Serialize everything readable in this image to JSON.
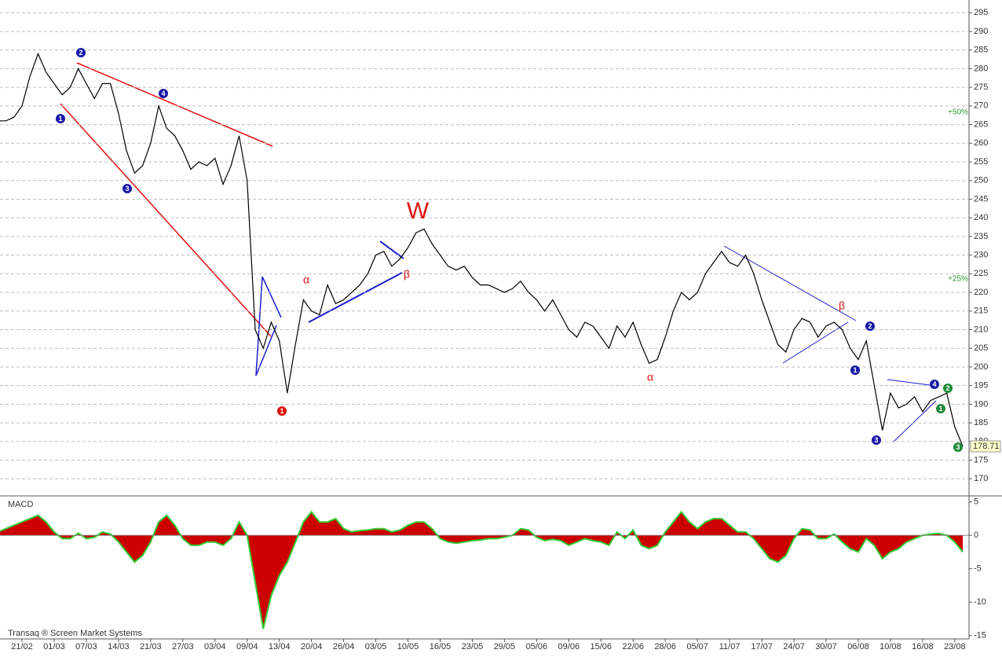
{
  "chart_data": [
    {
      "type": "line",
      "color": "#000000",
      "grid": true,
      "values": [
        266,
        266,
        267,
        270,
        278,
        284,
        279,
        276,
        273,
        275,
        280,
        276,
        272,
        276,
        276,
        268,
        258,
        252,
        254,
        260,
        270,
        264,
        262,
        258,
        253,
        255,
        254,
        256,
        249,
        254,
        262,
        250,
        210,
        205,
        212,
        207,
        193,
        206,
        218,
        215,
        214,
        222,
        217,
        218,
        220,
        222,
        225,
        230,
        231,
        227,
        229,
        232,
        236,
        237,
        233,
        230,
        227,
        226,
        227,
        224,
        222,
        222,
        221,
        220,
        221,
        223,
        220,
        218,
        215,
        218,
        214,
        210,
        208,
        212,
        211,
        208,
        205,
        211,
        208,
        212,
        206,
        201,
        202,
        208,
        215,
        220,
        218,
        220,
        225,
        228,
        231,
        228,
        227,
        230,
        225,
        218,
        212,
        206,
        204,
        210,
        213,
        212,
        208,
        211,
        212,
        210,
        205,
        202,
        207,
        195,
        183,
        193,
        189,
        190,
        192,
        188,
        191,
        192,
        193,
        184,
        178.71
      ],
      "ylim": [
        165,
        298
      ],
      "yticks": [
        170,
        175,
        180,
        185,
        190,
        195,
        200,
        205,
        210,
        215,
        220,
        225,
        230,
        235,
        240,
        245,
        250,
        255,
        260,
        265,
        270,
        275,
        280,
        285,
        290,
        295
      ],
      "wave_marks": [
        {
          "text": "2",
          "color": "#1a1aa8"
        },
        {
          "text": "1",
          "color": "#1a1aa8"
        },
        {
          "text": "4",
          "color": "#1a1aa8"
        },
        {
          "text": "3",
          "color": "#1a1aa8"
        },
        {
          "text": "1",
          "color": "#dd1111"
        },
        {
          "text": "2",
          "color": "#1a1aa8"
        },
        {
          "text": "1",
          "color": "#1a1aa8"
        },
        {
          "text": "3",
          "color": "#1a1aa8"
        },
        {
          "text": "4",
          "color": "#1a1aa8"
        },
        {
          "text": "2",
          "color": "#1f8a3a"
        },
        {
          "text": "1",
          "color": "#1f8a3a"
        },
        {
          "text": "3",
          "color": "#1f8a3a"
        }
      ],
      "notes": [
        {
          "text": "α",
          "color": "#dd1111"
        },
        {
          "text": "β",
          "color": "#dd1111"
        },
        {
          "text": "W",
          "color": "#dd1111"
        },
        {
          "text": "α",
          "color": "#dd1111"
        },
        {
          "text": "β",
          "color": "#dd1111"
        },
        {
          "text": "+50%",
          "color": "#2a9a2a"
        },
        {
          "text": "+25%",
          "color": "#2a9a2a"
        }
      ]
    },
    {
      "type": "area",
      "title": "MACD",
      "color": "#cc0000",
      "edge_color": "#33cc33",
      "categories": [
        null,
        null,
        null,
        "21/02",
        null,
        null,
        null,
        "01/03",
        null,
        null,
        null,
        "07/03",
        null,
        null,
        null,
        "14/03",
        null,
        null,
        null,
        "21/03",
        null,
        null,
        null,
        "27/03",
        null,
        null,
        null,
        "03/04",
        null,
        null,
        null,
        "09/04",
        null,
        null,
        null,
        "13/04",
        null,
        null,
        null,
        "20/04",
        null,
        null,
        null,
        "26/04",
        null,
        null,
        null,
        "03/05",
        null,
        null,
        null,
        "10/05",
        null,
        null,
        null,
        "16/05",
        null,
        null,
        null,
        "23/05",
        null,
        null,
        null,
        "29/05",
        null,
        null,
        null,
        "05/06",
        null,
        null,
        null,
        "09/06",
        null,
        null,
        null,
        "15/06",
        null,
        null,
        null,
        "22/06",
        null,
        null,
        null,
        "28/06",
        null,
        null,
        null,
        "05/07",
        null,
        null,
        null,
        "11/07",
        null,
        null,
        null,
        "17/07",
        null,
        null,
        null,
        "24/07",
        null,
        null,
        null,
        "30/07",
        null,
        null,
        null,
        "06/08",
        null,
        null,
        null,
        "10/08",
        null,
        null,
        null,
        "16/08",
        null,
        null,
        null,
        "23/08",
        null
      ],
      "values": [
        0.5,
        1,
        1.5,
        2,
        2.5,
        3,
        2,
        0.5,
        -0.5,
        -0.5,
        0.3,
        -0.5,
        -0.3,
        0.5,
        0.2,
        -1,
        -2.5,
        -4,
        -3,
        -1,
        2,
        3,
        1.5,
        -0.5,
        -1.5,
        -1.5,
        -1,
        -1,
        -1.5,
        -0.5,
        2,
        0,
        -7,
        -14,
        -9,
        -6,
        -4,
        -1,
        2,
        3.5,
        2,
        2,
        2.5,
        1,
        0.5,
        0.7,
        0.8,
        1,
        1,
        0.5,
        0.8,
        1.5,
        2,
        2,
        1,
        -0.5,
        -1,
        -1.2,
        -1,
        -0.8,
        -0.7,
        -0.5,
        -0.5,
        -0.3,
        0,
        1,
        0.8,
        -0.3,
        -0.8,
        -0.6,
        -0.8,
        -1.5,
        -1,
        -0.5,
        -0.8,
        -1,
        -1.5,
        0.5,
        -0.5,
        0.8,
        -1.5,
        -2,
        -1.5,
        0.5,
        2,
        3.5,
        2,
        1,
        2,
        2.5,
        2.5,
        1.5,
        0.5,
        0.5,
        -0.5,
        -2,
        -3.5,
        -4,
        -3,
        -0.5,
        1,
        0.8,
        -0.5,
        -0.5,
        0.2,
        -1,
        -2,
        -2.5,
        -0.5,
        -1.5,
        -3.5,
        -2.5,
        -2,
        -1,
        -0.5,
        0,
        0.2,
        0.3,
        0,
        -1,
        -2.5
      ],
      "ylim": [
        -15.5,
        5.9
      ],
      "yticks": [
        5,
        0,
        -5,
        -10,
        -15
      ]
    }
  ],
  "source": "Transaq ® Screen Market Systems"
}
